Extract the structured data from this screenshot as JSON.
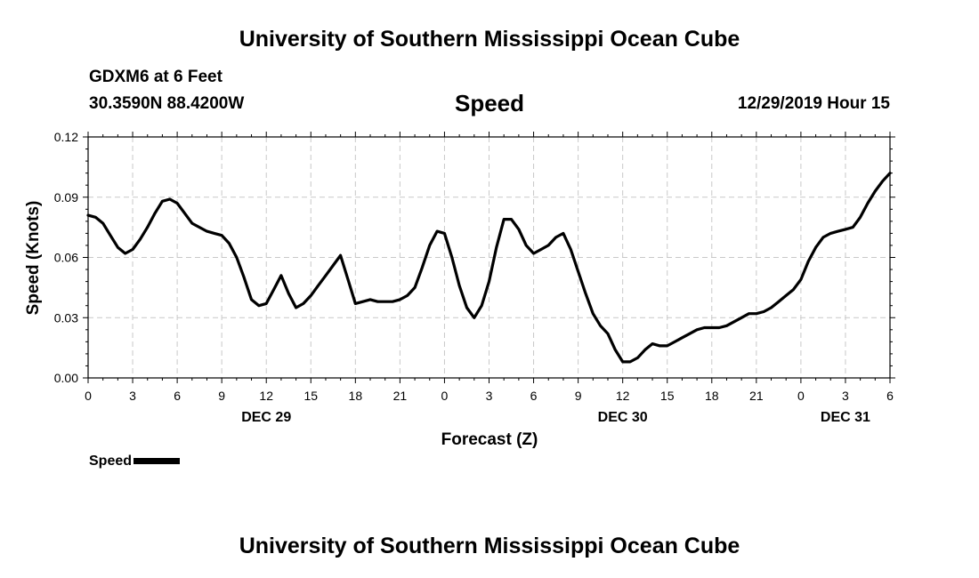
{
  "header": {
    "title_top": "University of Southern Mississippi Ocean Cube",
    "station": "GDXM6 at 6 Feet",
    "coords": "30.3590N 88.4200W",
    "plot_title": "Speed",
    "timestamp": "12/29/2019 Hour 15"
  },
  "footer": {
    "title_bottom": "University of Southern Mississippi Ocean Cube"
  },
  "legend": {
    "label": "Speed"
  },
  "chart_data": {
    "type": "line",
    "title": "Speed",
    "xlabel": "Forecast (Z)",
    "ylabel": "Speed (Knots)",
    "ylim": [
      0,
      0.12
    ],
    "xlim": [
      0,
      54
    ],
    "grid": true,
    "y_ticks": [
      0.0,
      0.03,
      0.06,
      0.09,
      0.12
    ],
    "y_tick_labels": [
      "0.00",
      "0.03",
      "0.06",
      "0.09",
      "0.12"
    ],
    "x_ticks": [
      0,
      3,
      6,
      9,
      12,
      15,
      18,
      21,
      24,
      27,
      30,
      33,
      36,
      39,
      42,
      45,
      48,
      51,
      54
    ],
    "x_tick_labels": [
      "0",
      "3",
      "6",
      "9",
      "12",
      "15",
      "18",
      "21",
      "0",
      "3",
      "6",
      "9",
      "12",
      "15",
      "18",
      "21",
      "0",
      "3",
      "6"
    ],
    "day_labels": [
      {
        "x": 12,
        "label": "DEC 29"
      },
      {
        "x": 36,
        "label": "DEC 30"
      },
      {
        "x": 51,
        "label": "DEC 31"
      }
    ],
    "series": [
      {
        "name": "Speed",
        "x": [
          0,
          0.5,
          1,
          1.5,
          2,
          2.5,
          3,
          3.5,
          4,
          4.5,
          5,
          5.5,
          6,
          6.5,
          7,
          7.5,
          8,
          8.5,
          9,
          9.5,
          10,
          10.5,
          11,
          11.5,
          12,
          12.5,
          13,
          13.5,
          14,
          14.5,
          15,
          15.5,
          16,
          16.5,
          17,
          17.5,
          18,
          18.5,
          19,
          19.5,
          20,
          20.5,
          21,
          21.5,
          22,
          22.5,
          23,
          23.5,
          24,
          24.5,
          25,
          25.5,
          26,
          26.5,
          27,
          27.5,
          28,
          28.5,
          29,
          29.5,
          30,
          30.5,
          31,
          31.5,
          32,
          32.5,
          33,
          33.5,
          34,
          34.5,
          35,
          35.5,
          36,
          36.5,
          37,
          37.5,
          38,
          38.5,
          39,
          39.5,
          40,
          40.5,
          41,
          41.5,
          42,
          42.5,
          43,
          43.5,
          44,
          44.5,
          45,
          45.5,
          46,
          46.5,
          47,
          47.5,
          48,
          48.5,
          49,
          49.5,
          50,
          50.5,
          51,
          51.5,
          52,
          52.5,
          53,
          53.5,
          54
        ],
        "values": [
          0.081,
          0.08,
          0.077,
          0.071,
          0.065,
          0.062,
          0.064,
          0.069,
          0.075,
          0.082,
          0.088,
          0.089,
          0.087,
          0.082,
          0.077,
          0.075,
          0.073,
          0.072,
          0.071,
          0.067,
          0.06,
          0.05,
          0.039,
          0.036,
          0.037,
          0.044,
          0.051,
          0.042,
          0.035,
          0.037,
          0.041,
          0.046,
          0.051,
          0.056,
          0.061,
          0.049,
          0.037,
          0.038,
          0.039,
          0.038,
          0.038,
          0.038,
          0.039,
          0.041,
          0.045,
          0.055,
          0.066,
          0.073,
          0.072,
          0.06,
          0.046,
          0.035,
          0.03,
          0.036,
          0.048,
          0.065,
          0.079,
          0.079,
          0.074,
          0.066,
          0.062,
          0.064,
          0.066,
          0.07,
          0.072,
          0.064,
          0.053,
          0.042,
          0.032,
          0.026,
          0.022,
          0.014,
          0.008,
          0.008,
          0.01,
          0.014,
          0.017,
          0.016,
          0.016,
          0.018,
          0.02,
          0.022,
          0.024,
          0.025,
          0.025,
          0.025,
          0.026,
          0.028,
          0.03,
          0.032,
          0.032,
          0.033,
          0.035,
          0.038,
          0.041,
          0.044,
          0.049,
          0.058,
          0.065,
          0.07,
          0.072,
          0.073,
          0.074,
          0.075,
          0.08,
          0.087,
          0.093,
          0.098,
          0.102
        ]
      }
    ]
  }
}
